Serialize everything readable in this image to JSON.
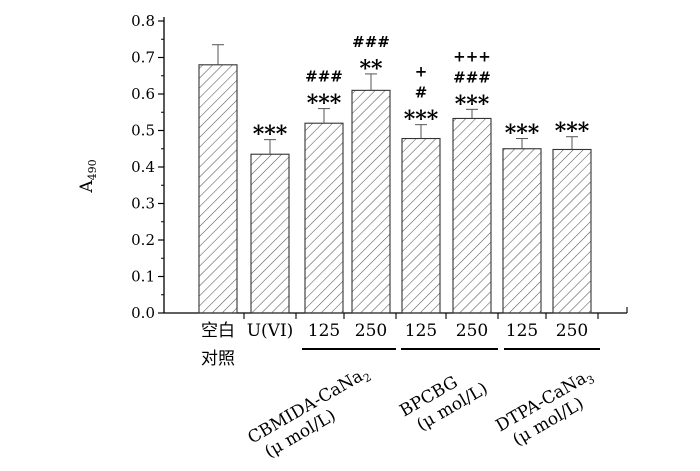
{
  "chart_data": {
    "type": "bar",
    "ylabel": "A",
    "ylabel_sub": "490",
    "ylim": [
      0,
      0.8
    ],
    "yticks": [
      "0.0",
      "0.1",
      "0.2",
      "0.3",
      "0.4",
      "0.5",
      "0.6",
      "0.7",
      "0.8"
    ],
    "bar_pattern": "diagonal-hatch",
    "bars": [
      {
        "label": "空白",
        "label2": "对照",
        "value": 0.68,
        "error": 0.055,
        "marks": []
      },
      {
        "label": "U(VI)",
        "label2": "",
        "value": 0.435,
        "error": 0.04,
        "marks": [
          "***"
        ]
      },
      {
        "label": "125",
        "label2": "",
        "value": 0.52,
        "error": 0.04,
        "marks": [
          "###",
          "***"
        ]
      },
      {
        "label": "250",
        "label2": "",
        "value": 0.61,
        "error": 0.045,
        "marks": [
          "###",
          "**"
        ]
      },
      {
        "label": "125",
        "label2": "",
        "value": 0.478,
        "error": 0.038,
        "marks": [
          "+",
          "#",
          "***"
        ]
      },
      {
        "label": "250",
        "label2": "",
        "value": 0.533,
        "error": 0.025,
        "marks": [
          "+++",
          "###",
          "***"
        ]
      },
      {
        "label": "125",
        "label2": "",
        "value": 0.45,
        "error": 0.028,
        "marks": [
          "***"
        ]
      },
      {
        "label": "250",
        "label2": "",
        "value": 0.448,
        "error": 0.035,
        "marks": [
          "***"
        ]
      }
    ],
    "groups": [
      {
        "name": "CBMIDA-CaNa",
        "sub": "2",
        "unit": "(μ mol/L)"
      },
      {
        "name": "BPCBG",
        "sub": "",
        "unit": "(μ mol/L)"
      },
      {
        "name": "DTPA-CaNa",
        "sub": "3",
        "unit": "(μ mol/L)"
      }
    ]
  }
}
